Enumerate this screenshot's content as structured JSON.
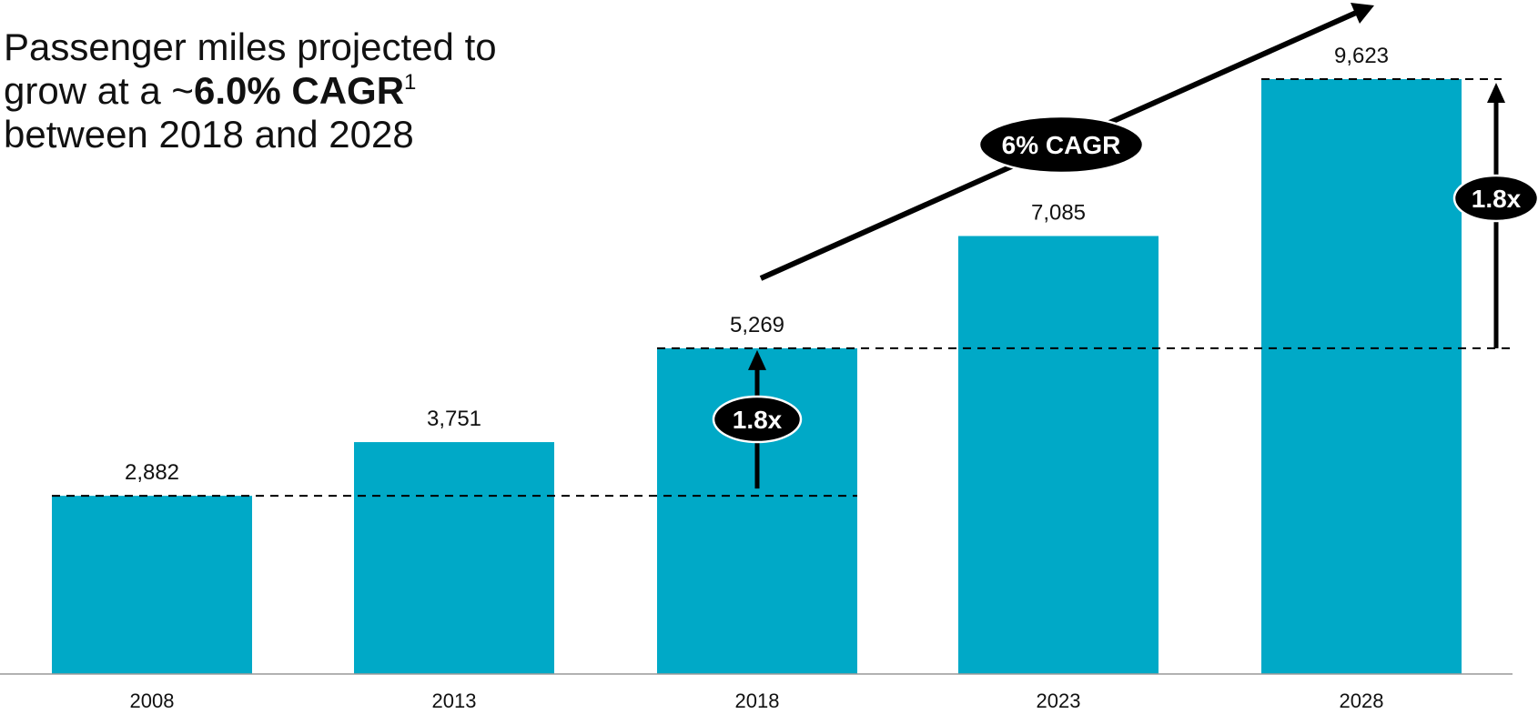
{
  "title": {
    "line1": "Passenger miles projected to",
    "line2_pre": "grow at a ~",
    "line2_bold": "6.0% CAGR",
    "footnote": "1",
    "line3": "between 2018 and 2028"
  },
  "colors": {
    "bar": "#00A9C7",
    "ink": "#000000"
  },
  "annotations": {
    "cagr_label": "6% CAGR",
    "multiple_2008_2018": "1.8x",
    "multiple_2018_2028": "1.8x"
  },
  "chart_data": {
    "type": "bar",
    "categories": [
      "2008",
      "2013",
      "2018",
      "2023",
      "2028"
    ],
    "values": [
      2882,
      3751,
      5269,
      7085,
      9623
    ],
    "value_labels": [
      "2,882",
      "3,751",
      "5,269",
      "7,085",
      "9,623"
    ],
    "title": "Passenger miles projected to grow at a ~6.0% CAGR between 2018 and 2028",
    "xlabel": "",
    "ylabel": "",
    "ylim": [
      0,
      9623
    ],
    "grid": false,
    "legend": "none"
  }
}
